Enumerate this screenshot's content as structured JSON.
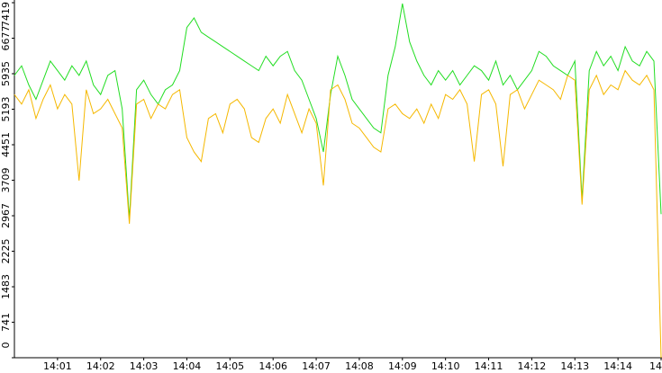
{
  "chart_data": {
    "type": "line",
    "categories": [
      null,
      null,
      null,
      null,
      null,
      null,
      "14:01",
      null,
      null,
      null,
      null,
      null,
      "14:02",
      null,
      null,
      null,
      null,
      null,
      "14:03",
      null,
      null,
      null,
      null,
      null,
      "14:04",
      null,
      null,
      null,
      null,
      null,
      "14:05",
      null,
      null,
      null,
      null,
      null,
      "14:06",
      null,
      null,
      null,
      null,
      null,
      "14:07",
      null,
      null,
      null,
      null,
      null,
      "14:08",
      null,
      null,
      null,
      null,
      null,
      "14:09",
      null,
      null,
      null,
      null,
      null,
      "14:10",
      null,
      null,
      null,
      null,
      null,
      "14:11",
      null,
      null,
      null,
      null,
      null,
      "14:12",
      null,
      null,
      null,
      null,
      null,
      "14:13",
      null,
      null,
      null,
      null,
      null,
      "14:14",
      null,
      null,
      null,
      null,
      null,
      "14"
    ],
    "series": [
      {
        "color": "#22dd22",
        "values": [
          5900,
          6100,
          5700,
          5400,
          5800,
          6200,
          6000,
          5800,
          6100,
          5900,
          6200,
          5700,
          5500,
          5900,
          6000,
          5200,
          2900,
          5600,
          5800,
          5500,
          5300,
          5600,
          5700,
          6000,
          6900,
          7100,
          6800,
          6700,
          6600,
          6500,
          6400,
          6300,
          6200,
          6100,
          6000,
          6300,
          6100,
          6300,
          6400,
          6000,
          5800,
          5400,
          5000,
          4300,
          5500,
          6300,
          5900,
          5400,
          5200,
          5000,
          4800,
          4700,
          5900,
          6500,
          7400,
          6600,
          6200,
          5900,
          5700,
          6000,
          5800,
          6000,
          5700,
          5900,
          6100,
          6000,
          5800,
          6200,
          5700,
          5900,
          5600,
          5800,
          6000,
          6400,
          6300,
          6100,
          6000,
          5900,
          6200,
          3300,
          6000,
          6400,
          6100,
          6300,
          6000,
          6500,
          6200,
          6100,
          6400,
          6200,
          3000
        ]
      },
      {
        "color": "#f5b800",
        "values": [
          5500,
          5300,
          5600,
          5000,
          5400,
          5700,
          5200,
          5500,
          5300,
          3700,
          5600,
          5100,
          5200,
          5400,
          5100,
          4800,
          2800,
          5300,
          5400,
          5000,
          5300,
          5200,
          5500,
          5600,
          4600,
          4300,
          4100,
          5000,
          5100,
          4700,
          5300,
          5400,
          5200,
          4600,
          4500,
          5000,
          5200,
          4900,
          5500,
          5100,
          4700,
          5200,
          4900,
          3600,
          5600,
          5700,
          5400,
          4900,
          4800,
          4600,
          4400,
          4300,
          5200,
          5300,
          5100,
          5000,
          5200,
          4900,
          5300,
          5000,
          5500,
          5400,
          5600,
          5300,
          4100,
          5500,
          5600,
          5300,
          4000,
          5500,
          5600,
          5200,
          5500,
          5800,
          5700,
          5600,
          5400,
          5900,
          5800,
          3200,
          5600,
          5900,
          5500,
          5700,
          5600,
          6000,
          5800,
          5700,
          5900,
          5600,
          0
        ]
      }
    ],
    "ylim": [
      0,
      7419
    ],
    "yticks": [
      0,
      741,
      1483,
      2225,
      2967,
      3709,
      4451,
      5193,
      5935,
      6677,
      7419
    ]
  }
}
